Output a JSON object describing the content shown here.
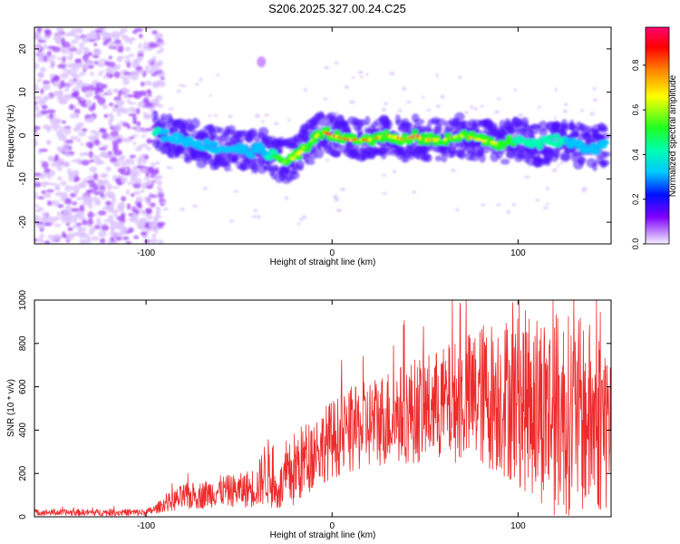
{
  "title": "S206.2025.327.00.24.C25",
  "colors": {
    "snr_line": "#ee2b2b",
    "band_core": "#ff2a2a",
    "band_mid": "#20e0ff",
    "band_outer": "#4a10ff",
    "noise": "#a64cff",
    "noise_faint": "#dcc3ff"
  },
  "chart_data": [
    {
      "id": "spectrogram",
      "type": "heatmap",
      "xlabel": "Height of straight line (km)",
      "ylabel": "Frequency (Hz)",
      "xlim": [
        -160,
        150
      ],
      "ylim": [
        -25,
        25
      ],
      "xticks": [
        -100,
        0,
        100
      ],
      "yticks": [
        -20,
        -10,
        0,
        10,
        20
      ],
      "colorbar": {
        "label": "Normalized spectral amplitude",
        "range": [
          0,
          0.97
        ],
        "ticks": [
          0.0,
          0.2,
          0.4,
          0.6,
          0.8
        ],
        "stops": [
          {
            "v": 0.0,
            "color": "#f6f0ff"
          },
          {
            "v": 0.12,
            "color": "#7d00ff"
          },
          {
            "v": 0.22,
            "color": "#0010ff"
          },
          {
            "v": 0.32,
            "color": "#00c8ff"
          },
          {
            "v": 0.42,
            "color": "#00ffb0"
          },
          {
            "v": 0.52,
            "color": "#20ff20"
          },
          {
            "v": 0.66,
            "color": "#ffff00"
          },
          {
            "v": 0.78,
            "color": "#ff8000"
          },
          {
            "v": 0.88,
            "color": "#ff0000"
          },
          {
            "v": 0.97,
            "color": "#ff0070"
          }
        ]
      },
      "ridge": {
        "height_km": [
          -95,
          -90,
          -80,
          -70,
          -60,
          -50,
          -45,
          -40,
          -35,
          -30,
          -25,
          -20,
          -15,
          -10,
          -5,
          0,
          10,
          20,
          30,
          40,
          45,
          50,
          60,
          70,
          80,
          90,
          100,
          110,
          120,
          130,
          140,
          148
        ],
        "frequency_hz": [
          1,
          0,
          -1,
          -2,
          -3,
          -3,
          -4,
          -3,
          -4,
          -5,
          -6,
          -5,
          -3,
          -1,
          1,
          0,
          -1,
          -1,
          0,
          -1,
          0,
          -1,
          -1,
          0,
          -1,
          -2,
          -1,
          -2,
          -1,
          -2,
          -3,
          -2
        ],
        "peak_amplitude": [
          0.35,
          0.3,
          0.28,
          0.3,
          0.3,
          0.28,
          0.25,
          0.3,
          0.32,
          0.45,
          0.5,
          0.55,
          0.6,
          0.65,
          0.7,
          0.9,
          0.85,
          0.85,
          0.8,
          0.85,
          0.9,
          0.8,
          0.75,
          0.65,
          0.55,
          0.5,
          0.4,
          0.38,
          0.35,
          0.3,
          0.32,
          0.3
        ]
      },
      "noise_region_km": [
        -160,
        -95
      ],
      "secondary_blob": {
        "height_km": -38,
        "frequency_hz": 17
      }
    },
    {
      "id": "snr",
      "type": "line",
      "xlabel": "Height of straight line (km)",
      "ylabel": "SNR (10 * v/v)",
      "xlim": [
        -160,
        150
      ],
      "ylim": [
        0,
        1000
      ],
      "xticks": [
        -100,
        0,
        100
      ],
      "yticks": [
        0,
        200,
        400,
        600,
        800,
        1000
      ],
      "envelope": {
        "height_km": [
          -160,
          -100,
          -95,
          -90,
          -80,
          -70,
          -60,
          -50,
          -40,
          -35,
          -30,
          -25,
          -20,
          -10,
          0,
          10,
          20,
          30,
          40,
          50,
          60,
          70,
          80,
          90,
          100,
          110,
          120,
          130,
          140,
          150
        ],
        "mean": [
          20,
          20,
          35,
          60,
          90,
          100,
          120,
          120,
          140,
          220,
          110,
          160,
          220,
          300,
          360,
          390,
          430,
          460,
          480,
          500,
          520,
          540,
          560,
          560,
          540,
          520,
          480,
          470,
          450,
          440
        ],
        "spread": [
          10,
          12,
          15,
          25,
          45,
          45,
          50,
          55,
          70,
          120,
          60,
          100,
          130,
          120,
          130,
          140,
          150,
          160,
          170,
          180,
          190,
          210,
          240,
          260,
          290,
          320,
          340,
          330,
          320,
          300
        ]
      }
    }
  ]
}
